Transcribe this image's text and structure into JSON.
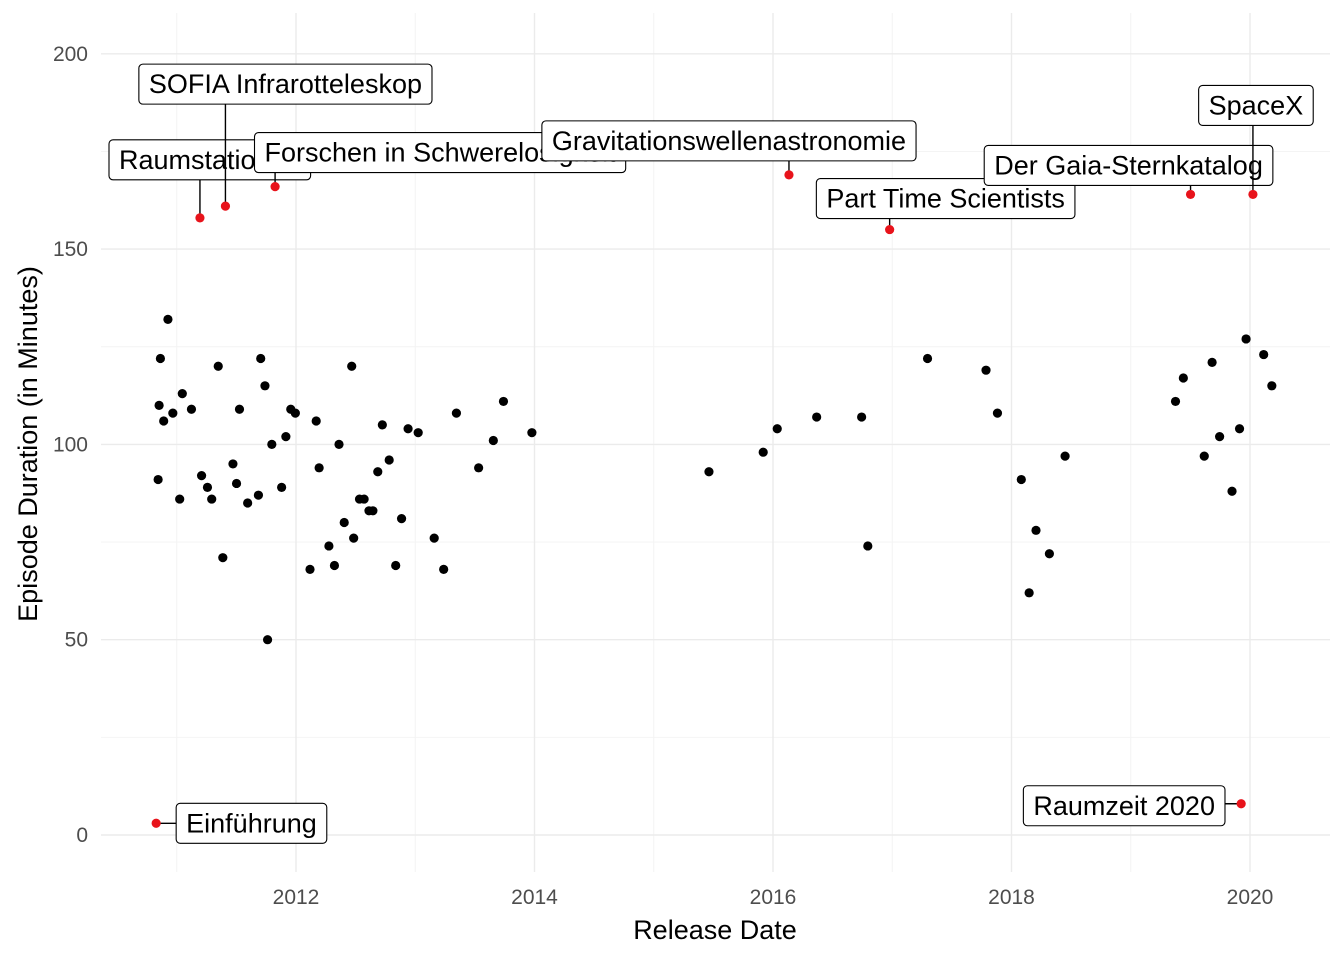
{
  "chart_data": {
    "type": "scatter",
    "xlabel": "Release Date",
    "ylabel": "Episode Duration (in Minutes)",
    "xlim": [
      "2010-06-23",
      "2020-07-01"
    ],
    "ylim": [
      -10,
      210
    ],
    "y_ticks": [
      0,
      50,
      100,
      150,
      200
    ],
    "x_ticks": [
      "2012",
      "2014",
      "2016",
      "2018",
      "2020"
    ],
    "grid": true,
    "colors": {
      "normal": "#000000",
      "highlight": "#e8131b"
    },
    "points": [
      {
        "x": "2010-11-05",
        "y": 91
      },
      {
        "x": "2010-11-08",
        "y": 110
      },
      {
        "x": "2010-11-12",
        "y": 122
      },
      {
        "x": "2010-11-22",
        "y": 106
      },
      {
        "x": "2010-12-05",
        "y": 132
      },
      {
        "x": "2010-12-20",
        "y": 108
      },
      {
        "x": "2011-01-10",
        "y": 86
      },
      {
        "x": "2011-01-18",
        "y": 113
      },
      {
        "x": "2011-02-15",
        "y": 109
      },
      {
        "x": "2011-03-18",
        "y": 92
      },
      {
        "x": "2011-04-05",
        "y": 89
      },
      {
        "x": "2011-04-18",
        "y": 86
      },
      {
        "x": "2011-05-08",
        "y": 120
      },
      {
        "x": "2011-05-22",
        "y": 71
      },
      {
        "x": "2011-06-22",
        "y": 95
      },
      {
        "x": "2011-07-03",
        "y": 90
      },
      {
        "x": "2011-07-12",
        "y": 109
      },
      {
        "x": "2011-08-06",
        "y": 85
      },
      {
        "x": "2011-09-08",
        "y": 87
      },
      {
        "x": "2011-09-15",
        "y": 122
      },
      {
        "x": "2011-09-28",
        "y": 115
      },
      {
        "x": "2011-10-06",
        "y": 50
      },
      {
        "x": "2011-10-19",
        "y": 100
      },
      {
        "x": "2011-11-18",
        "y": 89
      },
      {
        "x": "2011-12-01",
        "y": 102
      },
      {
        "x": "2011-12-16",
        "y": 109
      },
      {
        "x": "2011-12-30",
        "y": 108
      },
      {
        "x": "2012-02-13",
        "y": 68
      },
      {
        "x": "2012-03-03",
        "y": 106
      },
      {
        "x": "2012-03-12",
        "y": 94
      },
      {
        "x": "2012-04-11",
        "y": 74
      },
      {
        "x": "2012-04-28",
        "y": 69
      },
      {
        "x": "2012-05-12",
        "y": 100
      },
      {
        "x": "2012-05-28",
        "y": 80
      },
      {
        "x": "2012-06-20",
        "y": 120
      },
      {
        "x": "2012-06-26",
        "y": 76
      },
      {
        "x": "2012-07-14",
        "y": 86
      },
      {
        "x": "2012-07-28",
        "y": 86
      },
      {
        "x": "2012-08-12",
        "y": 83
      },
      {
        "x": "2012-08-24",
        "y": 83
      },
      {
        "x": "2012-09-08",
        "y": 93
      },
      {
        "x": "2012-09-22",
        "y": 105
      },
      {
        "x": "2012-10-13",
        "y": 96
      },
      {
        "x": "2012-11-02",
        "y": 69
      },
      {
        "x": "2012-11-20",
        "y": 81
      },
      {
        "x": "2012-12-10",
        "y": 104
      },
      {
        "x": "2013-01-10",
        "y": 103
      },
      {
        "x": "2013-02-28",
        "y": 76
      },
      {
        "x": "2013-03-29",
        "y": 68
      },
      {
        "x": "2013-05-07",
        "y": 108
      },
      {
        "x": "2013-07-14",
        "y": 94
      },
      {
        "x": "2013-08-28",
        "y": 101
      },
      {
        "x": "2013-09-28",
        "y": 111
      },
      {
        "x": "2013-12-24",
        "y": 103
      },
      {
        "x": "2015-06-19",
        "y": 93
      },
      {
        "x": "2015-12-02",
        "y": 98
      },
      {
        "x": "2016-01-14",
        "y": 104
      },
      {
        "x": "2016-05-14",
        "y": 107
      },
      {
        "x": "2016-09-29",
        "y": 107
      },
      {
        "x": "2016-10-18",
        "y": 74
      },
      {
        "x": "2017-04-19",
        "y": 122
      },
      {
        "x": "2017-10-15",
        "y": 119
      },
      {
        "x": "2017-11-19",
        "y": 108
      },
      {
        "x": "2018-01-31",
        "y": 91
      },
      {
        "x": "2018-02-24",
        "y": 62
      },
      {
        "x": "2018-03-17",
        "y": 78
      },
      {
        "x": "2018-04-27",
        "y": 72
      },
      {
        "x": "2018-06-14",
        "y": 97
      },
      {
        "x": "2019-05-18",
        "y": 111
      },
      {
        "x": "2019-06-11",
        "y": 117
      },
      {
        "x": "2019-08-14",
        "y": 97
      },
      {
        "x": "2019-09-07",
        "y": 121
      },
      {
        "x": "2019-09-30",
        "y": 102
      },
      {
        "x": "2019-11-07",
        "y": 88
      },
      {
        "x": "2019-11-30",
        "y": 104
      },
      {
        "x": "2019-12-20",
        "y": 127
      },
      {
        "x": "2020-02-12",
        "y": 123
      },
      {
        "x": "2020-03-08",
        "y": 115
      }
    ],
    "highlighted": [
      {
        "label": "Einführung",
        "x": "2010-10-30",
        "y": 3
      },
      {
        "label": "Raumstationen",
        "x": "2011-03-13",
        "y": 158
      },
      {
        "label": "SOFIA Infrarotteleskop",
        "x": "2011-05-30",
        "y": 161
      },
      {
        "label": "Forschen in Schwerelosigkeit",
        "x": "2011-10-29",
        "y": 166
      },
      {
        "label": "Gravitationswellenastronomie",
        "x": "2016-02-19",
        "y": 169
      },
      {
        "label": "Part Time Scientists",
        "x": "2016-12-24",
        "y": 155
      },
      {
        "label": "Der Gaia-Sternkatalog",
        "x": "2019-07-03",
        "y": 164
      },
      {
        "label": "SpaceX",
        "x": "2020-01-10",
        "y": 164
      },
      {
        "label": "Raumzeit 2020",
        "x": "2019-12-05",
        "y": 8
      }
    ]
  }
}
